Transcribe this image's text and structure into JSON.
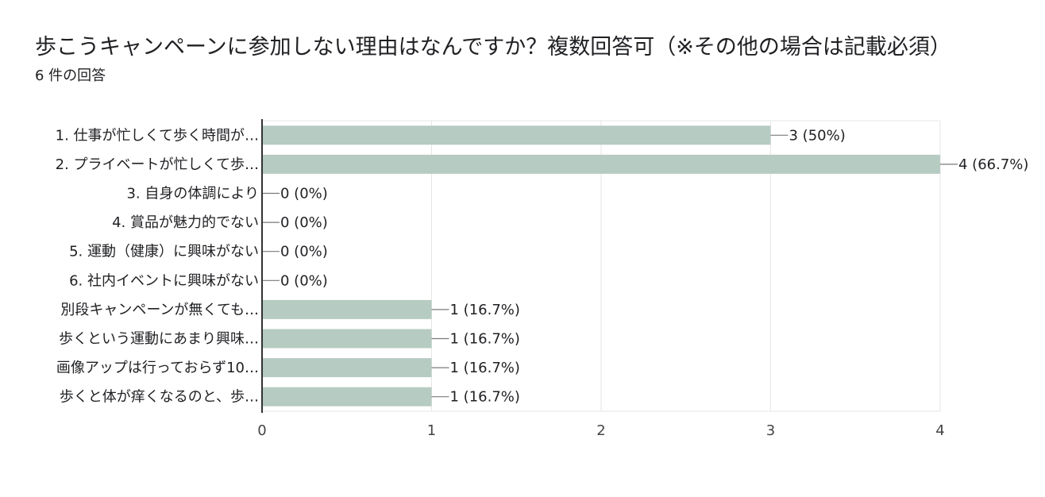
{
  "question": {
    "title": "歩こうキャンペーンに参加しない理由はなんですか？複数回答可（※その他の場合は記載必須）",
    "response_count": "6 件の回答"
  },
  "colors": {
    "bar": "#b6cbc2",
    "axis": "#333333",
    "grid": "#e6e6e6",
    "leader": "#7a7a7a"
  },
  "chart_data": {
    "type": "bar",
    "orientation": "horizontal",
    "title": "",
    "xlabel": "",
    "ylabel": "",
    "xlim": [
      0,
      4
    ],
    "ticks": [
      0,
      1,
      2,
      3,
      4
    ],
    "grid": true,
    "categories": [
      "1. 仕事が忙しくて歩く時間が…",
      "2. プライベートが忙しくて歩…",
      "3. 自身の体調により",
      "4. 賞品が魅力的でない",
      "5. 運動（健康）に興味がない",
      "6. 社内イベントに興味がない",
      "別段キャンペーンが無くても…",
      "歩くという運動にあまり興味…",
      "画像アップは行っておらず10…",
      "歩くと体が痒くなるのと、歩…"
    ],
    "values": [
      3,
      4,
      0,
      0,
      0,
      0,
      1,
      1,
      1,
      1
    ],
    "data_labels": [
      "3 (50%)",
      "4 (66.7%)",
      "0 (0%)",
      "0 (0%)",
      "0 (0%)",
      "0 (0%)",
      "1 (16.7%)",
      "1 (16.7%)",
      "1 (16.7%)",
      "1 (16.7%)"
    ]
  }
}
